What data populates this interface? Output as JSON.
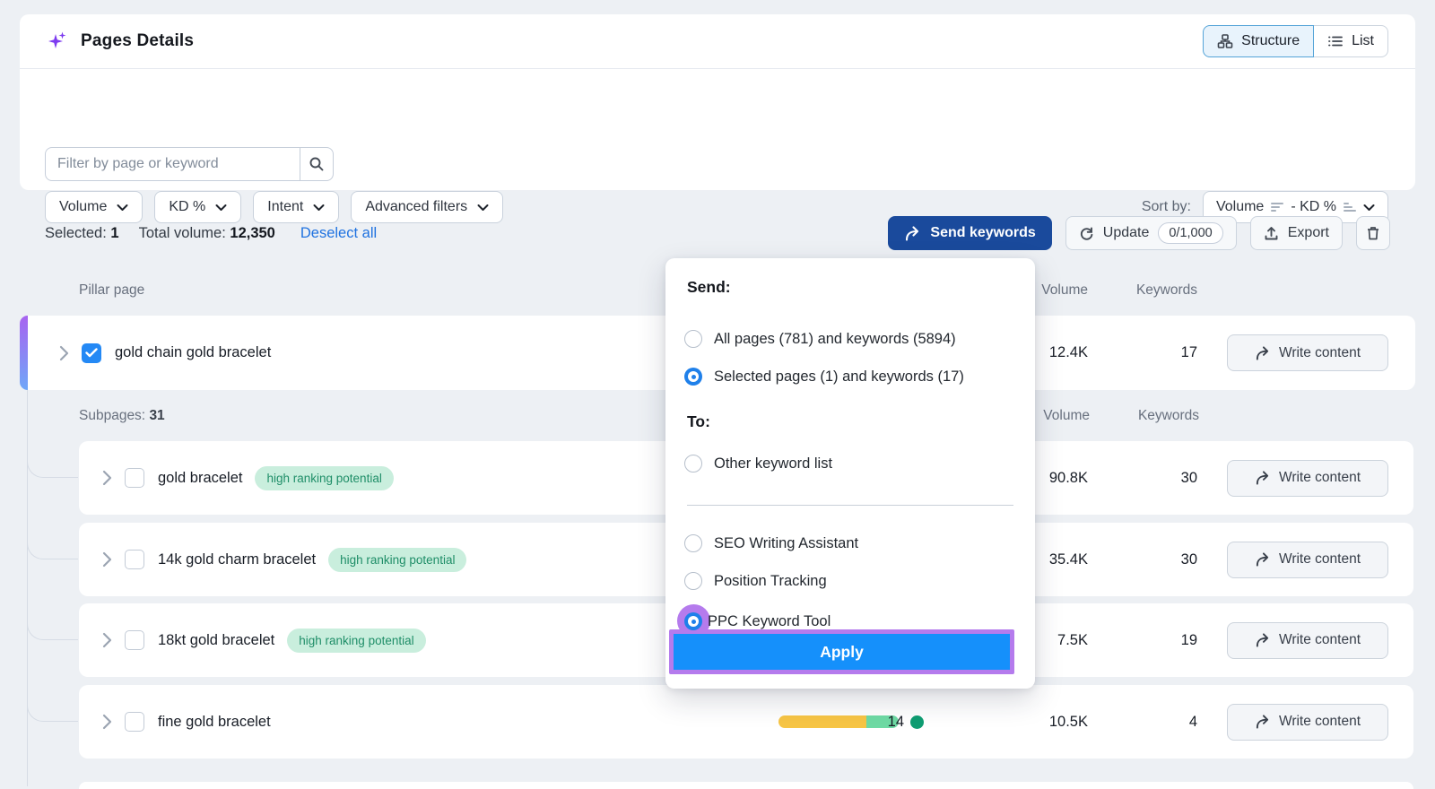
{
  "header": {
    "title": "Pages Details",
    "view_toggle": {
      "structure_label": "Structure",
      "list_label": "List",
      "active": "Structure"
    }
  },
  "filters": {
    "search_placeholder": "Filter by page or keyword",
    "pills": [
      {
        "label": "Volume"
      },
      {
        "label": "KD %"
      },
      {
        "label": "Intent"
      },
      {
        "label": "Advanced filters"
      }
    ],
    "sort_by_label": "Sort by:",
    "sort_primary": "Volume",
    "sort_secondary": "- KD %"
  },
  "selection_bar": {
    "selected_label": "Selected:",
    "selected_count": "1",
    "total_volume_label": "Total volume:",
    "total_volume": "12,350",
    "deselect_all_label": "Deselect all",
    "send_keywords_label": "Send keywords",
    "update_label": "Update",
    "update_quota": "0/1,000",
    "export_label": "Export"
  },
  "table": {
    "pillar_header": "Pillar page",
    "volume_header": "Volume",
    "keywords_header": "Keywords",
    "subpages_label": "Subpages:",
    "subpages_count": "31",
    "pillar_row": {
      "name": "gold chain gold bracelet",
      "checked": true,
      "volume": "12.4K",
      "keywords": "17",
      "action_label": "Write content"
    },
    "subpage_rows": [
      {
        "name": "gold bracelet",
        "badge": "high ranking potential",
        "volume": "90.8K",
        "keywords": "30",
        "action_label": "Write content",
        "checked": false
      },
      {
        "name": "14k gold charm bracelet",
        "badge": "high ranking potential",
        "volume": "35.4K",
        "keywords": "30",
        "action_label": "Write content",
        "checked": false
      },
      {
        "name": "18kt gold bracelet",
        "badge": "high ranking potential",
        "volume": "7.5K",
        "keywords": "19",
        "action_label": "Write content",
        "checked": false
      },
      {
        "name": "fine gold bracelet",
        "badge": null,
        "volume": "10.5K",
        "keywords": "4",
        "action_label": "Write content",
        "checked": false,
        "kd_value": "14",
        "intent_bar": {
          "yellow_pct": 73,
          "green_pct": 27
        }
      }
    ]
  },
  "popup": {
    "send_heading": "Send:",
    "send_options": [
      {
        "label": "All pages (781) and keywords (5894)",
        "selected": false
      },
      {
        "label": "Selected pages (1) and keywords (17)",
        "selected": true
      }
    ],
    "to_heading": "To:",
    "to_options": [
      {
        "label": "Other keyword list",
        "selected": false
      },
      {
        "label": "SEO Writing Assistant",
        "selected": false
      },
      {
        "label": "Position Tracking",
        "selected": false
      },
      {
        "label": "PPC Keyword Tool",
        "selected": true,
        "highlighted": true
      }
    ],
    "apply_label": "Apply"
  },
  "colors": {
    "page_background": "#edf0f4",
    "send_button_navy": "#1a4a9c",
    "apply_blue": "#1590fb",
    "annotation_purple": "#b57bed",
    "checkbox_blue": "#2489f5",
    "radio_blue": "#1f80ea",
    "badge_green_bg": "#c9eedd",
    "badge_green_text": "#1f8e68",
    "kd_dot_green": "#0f9d72",
    "intent_bar_yellow": "#f7c545",
    "intent_bar_green": "#6edaa4",
    "pillar_gradient_top": "#a863f0",
    "pillar_gradient_bottom": "#6fa7f8",
    "link_blue": "#1f72e0",
    "structure_active_bg": "#e8f3fc"
  }
}
